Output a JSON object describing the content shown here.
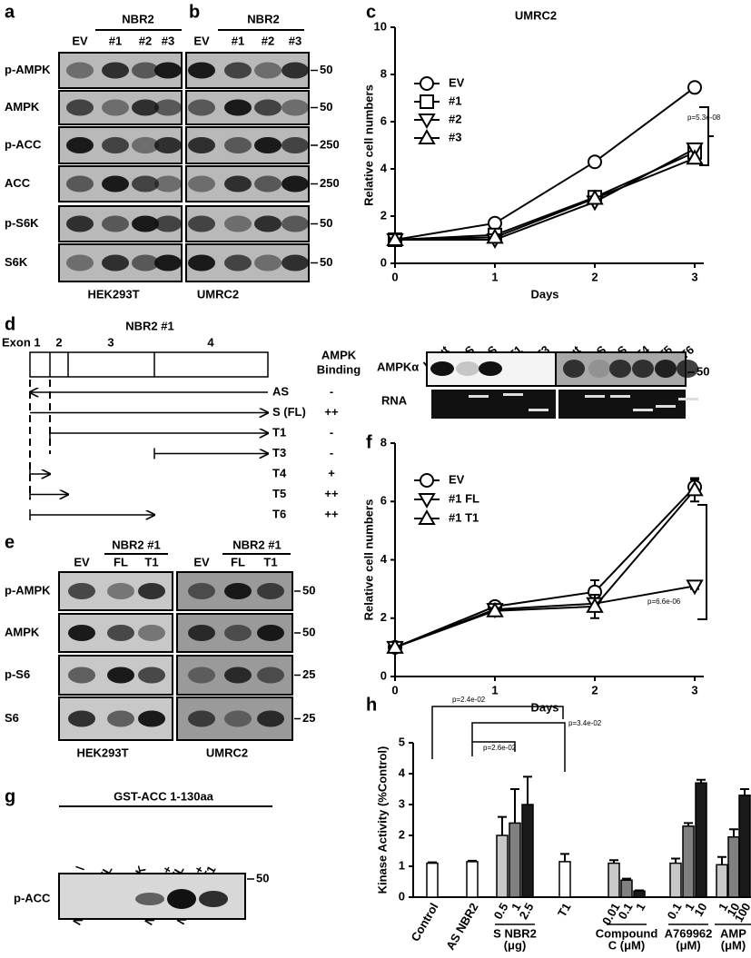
{
  "panel_a": {
    "label": "a",
    "group": "NBR2",
    "lanes": [
      "EV",
      "#1",
      "#2",
      "#3"
    ],
    "rows": [
      "p-AMPK",
      "AMPK",
      "p-ACC",
      "ACC",
      "p-S6K",
      "S6K"
    ],
    "cell_line": "HEK293T"
  },
  "panel_b": {
    "label": "b",
    "group": "NBR2",
    "lanes": [
      "EV",
      "#1",
      "#2",
      "#3"
    ],
    "markers": [
      "50",
      "50",
      "250",
      "250",
      "50",
      "50"
    ],
    "cell_line": "UMRC2"
  },
  "panel_d": {
    "label": "d",
    "title": "NBR2 #1",
    "exons": [
      "Exon 1",
      "2",
      "3",
      "4"
    ],
    "binding_header": [
      "AMPK",
      "Binding"
    ],
    "constructs": [
      {
        "name": "AS",
        "binding": "-"
      },
      {
        "name": "S (FL)",
        "binding": "++"
      },
      {
        "name": "T1",
        "binding": "-"
      },
      {
        "name": "T3",
        "binding": "-"
      },
      {
        "name": "T4",
        "binding": "+"
      },
      {
        "name": "T5",
        "binding": "++"
      },
      {
        "name": "T6",
        "binding": "++"
      }
    ],
    "blot": {
      "lanes_left": [
        "Input",
        "AS",
        "S",
        "T1",
        "T3"
      ],
      "lanes_right": [
        "Input",
        "AS",
        "S",
        "T4",
        "T5",
        "T6"
      ],
      "rows": [
        "AMPKα",
        "RNA"
      ],
      "marker": "50"
    }
  },
  "panel_e": {
    "label": "e",
    "group": "NBR2 #1",
    "lanes": [
      "EV",
      "FL",
      "T1"
    ],
    "rows": [
      "p-AMPK",
      "AMPK",
      "p-S6",
      "S6"
    ],
    "markers": [
      "50",
      "50",
      "25",
      "25"
    ],
    "cell_lines": [
      "HEK293T",
      "UMRC2"
    ]
  },
  "panel_g": {
    "label": "g",
    "title": "GST-ACC 1-130aa",
    "lanes": [
      [
        "\\"
      ],
      [
        "NBR2 #1 FL"
      ],
      [
        "AMPK"
      ],
      [
        "AMPK +",
        "NBR2 #1 FL"
      ],
      [
        "AMPK +",
        "NBR2 #1 T1"
      ]
    ],
    "row": "p-ACC",
    "marker": "50"
  },
  "chart_data": [
    {
      "panel_label": "c",
      "type": "line",
      "title": "UMRC2",
      "x_label": "Days",
      "y_label": "Relative cell numbers",
      "x": [
        0,
        1,
        2,
        3
      ],
      "xlim": [
        0,
        3
      ],
      "xticks": [
        0,
        1,
        2,
        3
      ],
      "ylim": [
        0,
        10
      ],
      "yticks": [
        0,
        2,
        4,
        6,
        8,
        10
      ],
      "series": [
        {
          "name": "EV",
          "color": "#000000",
          "marker": "circle",
          "values": [
            1,
            1.7,
            4.3,
            7.45
          ]
        },
        {
          "name": "#1",
          "color": "#000000",
          "marker": "square",
          "values": [
            1,
            1.2,
            2.8,
            4.7
          ]
        },
        {
          "name": "#2",
          "color": "#000000",
          "marker": "triangle-down",
          "values": [
            1,
            1.0,
            2.6,
            4.85
          ]
        },
        {
          "name": "#3",
          "color": "#000000",
          "marker": "triangle-up",
          "values": [
            1,
            1.1,
            2.75,
            4.45
          ]
        }
      ],
      "annotations": [
        "p=5.3e-08"
      ]
    },
    {
      "panel_label": "f",
      "type": "line",
      "x_label": "Days",
      "y_label": "Relative cell numbers",
      "x": [
        0,
        1,
        2,
        3
      ],
      "xlim": [
        0,
        3
      ],
      "xticks": [
        0,
        1,
        2,
        3
      ],
      "ylim": [
        0,
        8
      ],
      "yticks": [
        0,
        2,
        4,
        6,
        8
      ],
      "series": [
        {
          "name": "EV",
          "color": "#000000",
          "marker": "circle",
          "values": [
            1,
            2.4,
            2.9,
            6.5
          ],
          "errors": [
            0.05,
            0.1,
            0.4,
            0.25
          ]
        },
        {
          "name": "#1 FL",
          "color": "#000000",
          "marker": "triangle-down",
          "values": [
            1,
            2.3,
            2.5,
            3.1
          ],
          "errors": [
            0.05,
            0.1,
            0.1,
            0.1
          ]
        },
        {
          "name": "#1 T1",
          "color": "#000000",
          "marker": "triangle-up",
          "values": [
            1,
            2.25,
            2.4,
            6.4
          ],
          "errors": [
            0.05,
            0.1,
            0.4,
            0.4
          ]
        }
      ],
      "annotations": [
        "p=6.6e-06"
      ]
    },
    {
      "panel_label": "h",
      "type": "bar",
      "y_label": "Kinase Activity (%Control)",
      "ylim": [
        0,
        5
      ],
      "yticks": [
        0,
        1,
        2,
        3,
        4,
        5
      ],
      "groups": [
        {
          "label_lines": [
            "Control"
          ],
          "colors": [
            "#ffffff"
          ],
          "values": [
            1.1
          ],
          "errors": [
            0.03
          ]
        },
        {
          "label_lines": [
            "AS NBR2"
          ],
          "colors": [
            "#ffffff"
          ],
          "values": [
            1.15
          ],
          "errors": [
            0.03
          ]
        },
        {
          "label_lines": [
            "S NBR2",
            "(μg)"
          ],
          "categories": [
            "0.5",
            "1",
            "2.5"
          ],
          "colors": [
            "#c8c8c8",
            "#808080",
            "#1a1a1a"
          ],
          "values": [
            2.0,
            2.4,
            3.0
          ],
          "errors": [
            0.6,
            1.1,
            0.9
          ]
        },
        {
          "label_lines": [
            "T1"
          ],
          "colors": [
            "#ffffff"
          ],
          "values": [
            1.15
          ],
          "errors": [
            0.25
          ]
        },
        {
          "label_lines": [
            "Compound",
            "C (μM)"
          ],
          "categories": [
            "0.01",
            "0.1",
            "1"
          ],
          "colors": [
            "#c8c8c8",
            "#808080",
            "#1a1a1a"
          ],
          "values": [
            1.1,
            0.55,
            0.2
          ],
          "errors": [
            0.1,
            0.05,
            0.02
          ]
        },
        {
          "label_lines": [
            "A769962",
            "(μM)"
          ],
          "categories": [
            "0.1",
            "1",
            "10"
          ],
          "colors": [
            "#c8c8c8",
            "#808080",
            "#1a1a1a"
          ],
          "values": [
            1.1,
            2.3,
            3.7
          ],
          "errors": [
            0.15,
            0.1,
            0.1
          ]
        },
        {
          "label_lines": [
            "AMP",
            "(μM)"
          ],
          "categories": [
            "1",
            "10",
            "100"
          ],
          "colors": [
            "#c8c8c8",
            "#808080",
            "#1a1a1a"
          ],
          "values": [
            1.05,
            1.95,
            3.3
          ],
          "errors": [
            0.25,
            0.25,
            0.2
          ]
        }
      ],
      "annotations": [
        "p=2.4e-02",
        "p=2.6e-02",
        "p=3.4e-02"
      ]
    }
  ]
}
